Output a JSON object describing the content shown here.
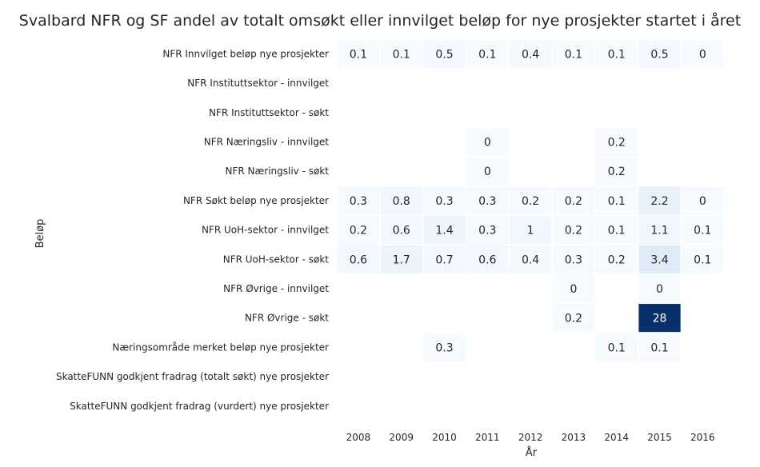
{
  "chart_data": {
    "type": "heatmap",
    "title": "Svalbard NFR og SF andel av totalt omsøkt eller innvilget beløp for nye prosjekter startet i året",
    "xlabel": "År",
    "ylabel": "Beløp",
    "x": [
      "2008",
      "2009",
      "2010",
      "2011",
      "2012",
      "2013",
      "2014",
      "2015",
      "2016"
    ],
    "y": [
      "NFR Innvilget beløp nye prosjekter",
      "NFR Instituttsektor - innvilget",
      "NFR Instituttsektor - søkt",
      "NFR Næringsliv - innvilget",
      "NFR Næringsliv - søkt",
      "NFR Søkt beløp nye prosjekter",
      "NFR UoH-sektor - innvilget",
      "NFR UoH-sektor - søkt",
      "NFR Øvrige - innvilget",
      "NFR Øvrige - søkt",
      "Næringsområde merket beløp nye prosjekter",
      "SkatteFUNN godkjent fradrag (totalt søkt) nye prosjekter",
      "SkatteFUNN godkjent fradrag (vurdert) nye prosjekter"
    ],
    "values": [
      [
        0.1,
        0.1,
        0.5,
        0.1,
        0.4,
        0.1,
        0.1,
        0.5,
        0
      ],
      [
        null,
        null,
        null,
        null,
        null,
        null,
        null,
        null,
        null
      ],
      [
        null,
        null,
        null,
        null,
        null,
        null,
        null,
        null,
        null
      ],
      [
        null,
        null,
        null,
        0,
        null,
        null,
        0.2,
        null,
        null
      ],
      [
        null,
        null,
        null,
        0,
        null,
        null,
        0.2,
        null,
        null
      ],
      [
        0.3,
        0.8,
        0.3,
        0.3,
        0.2,
        0.2,
        0.1,
        2.2,
        0
      ],
      [
        0.2,
        0.6,
        1.4,
        0.3,
        1,
        0.2,
        0.1,
        1.1,
        0.1
      ],
      [
        0.6,
        1.7,
        0.7,
        0.6,
        0.4,
        0.3,
        0.2,
        3.4,
        0.1
      ],
      [
        null,
        null,
        null,
        null,
        null,
        0,
        null,
        0,
        null
      ],
      [
        null,
        null,
        null,
        null,
        null,
        0.2,
        null,
        28,
        null
      ],
      [
        null,
        null,
        0.3,
        null,
        null,
        null,
        0.1,
        0.1,
        null
      ],
      [
        null,
        null,
        null,
        null,
        null,
        null,
        null,
        null,
        null
      ],
      [
        null,
        null,
        null,
        null,
        null,
        null,
        null,
        null,
        null
      ]
    ],
    "colormap": "Blues",
    "color_range": [
      0,
      28
    ],
    "grid": false,
    "legend": "none"
  }
}
